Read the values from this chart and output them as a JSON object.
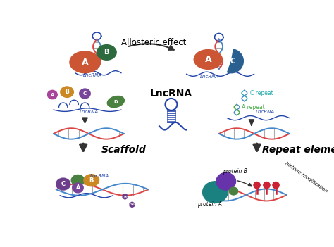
{
  "background_color": "#ffffff",
  "allosteric_text": "Allosteric effect",
  "scaffold_text": "Scaffold",
  "repeat_text": "Repeat element",
  "lncrna_center_text": "LncRNA",
  "lncrna_label": "LncRNA",
  "protein_a_text": "protein A",
  "protein_b_text": "protein B",
  "histone_text": "histone modification",
  "a_repeat_text": "A repeat",
  "c_repeat_text": "C repeat",
  "colors": {
    "protein_a_orange": "#cc5533",
    "protein_b_green": "#2d6b3e",
    "protein_c_blue": "#2a6090",
    "protein_a_small_purple": "#aa4499",
    "protein_b_small_yellow": "#cc8822",
    "protein_c_small_purple2": "#774499",
    "protein_d_green": "#4a8040",
    "dna_red": "#dd4444",
    "dna_blue": "#4488cc",
    "dna_stripe_red": "#cc3333",
    "dna_stripe_blue": "#3366bb",
    "lncrna_blue": "#2244aa",
    "arrow_dark": "#333333",
    "scaffold_c_purple": "#6b3d8b",
    "scaffold_b_yellow": "#cc8822",
    "scaffold_green": "#4a8040",
    "scaffold_a_purple": "#774499",
    "repeat_protein_a_teal": "#1a8080",
    "repeat_protein_b_purple": "#6633aa",
    "histone_red": "#cc2233",
    "a_repeat_green": "#44aa44",
    "c_repeat_teal": "#22aaaa"
  }
}
